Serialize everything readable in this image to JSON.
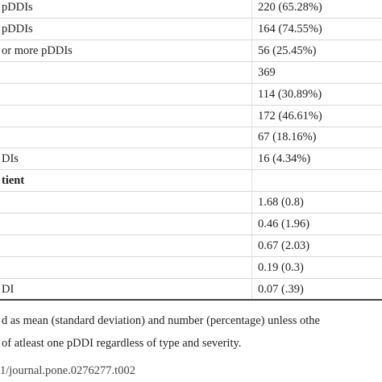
{
  "table": {
    "rows": [
      {
        "label": "pDDIs",
        "value": "220 (65.28%)"
      },
      {
        "label": "pDDIs",
        "value": "164 (74.55%)"
      },
      {
        "label": "or more pDDIs",
        "value": "56 (25.45%)"
      },
      {
        "value": "369"
      },
      {
        "value": "114 (30.89%)"
      },
      {
        "value": "172 (46.61%)"
      },
      {
        "value": "67 (18.16%)"
      },
      {
        "label": "DIs",
        "value": "16 (4.34%)"
      },
      {
        "section": "tient"
      },
      {
        "value": "1.68 (0.8)"
      },
      {
        "value": "0.46 (1.96)"
      },
      {
        "value": "0.67 (2.03)"
      },
      {
        "value": "0.19 (0.3)"
      },
      {
        "label": "DI",
        "value": "0.07 (.39)"
      }
    ]
  },
  "footnotes": [
    "d as mean (standard deviation) and number (percentage) unless othe",
    "of atleast one pDDI regardless of type and severity."
  ],
  "doi": "1/journal.pone.0276277.t002"
}
